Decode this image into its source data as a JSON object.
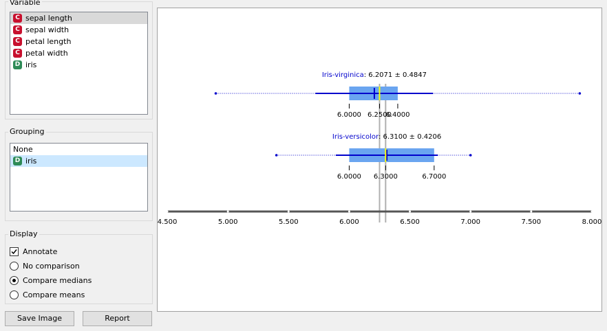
{
  "variable": {
    "title": "Variable",
    "items": [
      {
        "badge": "C",
        "label": "sepal length"
      },
      {
        "badge": "C",
        "label": "sepal width"
      },
      {
        "badge": "C",
        "label": "petal length"
      },
      {
        "badge": "C",
        "label": "petal width"
      },
      {
        "badge": "D",
        "label": "iris"
      }
    ]
  },
  "grouping": {
    "title": "Grouping",
    "items": [
      {
        "badge": "",
        "label": "None"
      },
      {
        "badge": "D",
        "label": "iris"
      }
    ]
  },
  "display": {
    "title": "Display",
    "annotate": "Annotate",
    "no_comparison": "No comparison",
    "compare_medians": "Compare medians",
    "compare_means": "Compare means"
  },
  "buttons": {
    "save_image": "Save Image",
    "report": "Report"
  },
  "colors": {
    "badge_c": "#c8102e",
    "badge_d": "#2e8b57",
    "box": "#6aa5f0",
    "whisker": "#0000cc",
    "median": "#ffff00"
  },
  "chart_data": {
    "type": "box",
    "x_ticks": [
      "4.500",
      "5.000",
      "5.500",
      "6.000",
      "6.500",
      "7.000",
      "7.500",
      "8.000"
    ],
    "xlim": [
      4.5,
      8.0
    ],
    "boxes": [
      {
        "name": "Iris-virginica",
        "mean_label": "6.2071",
        "sd_label": "0.4847",
        "min": 4.9,
        "q1": 6.0,
        "median": 6.25,
        "q3": 6.4,
        "max": 7.9,
        "mean": 6.2071,
        "sd": 0.4847,
        "q_labels": [
          "6.0000",
          "6.2500",
          "6.4000"
        ]
      },
      {
        "name": "Iris-versicolor",
        "mean_label": "6.3100",
        "sd_label": "0.4206",
        "min": 5.4,
        "q1": 6.0,
        "median": 6.3,
        "q3": 6.7,
        "max": 7.0,
        "mean": 6.31,
        "sd": 0.4206,
        "q_labels": [
          "6.0000",
          "6.3000",
          "6.7000"
        ]
      }
    ]
  }
}
